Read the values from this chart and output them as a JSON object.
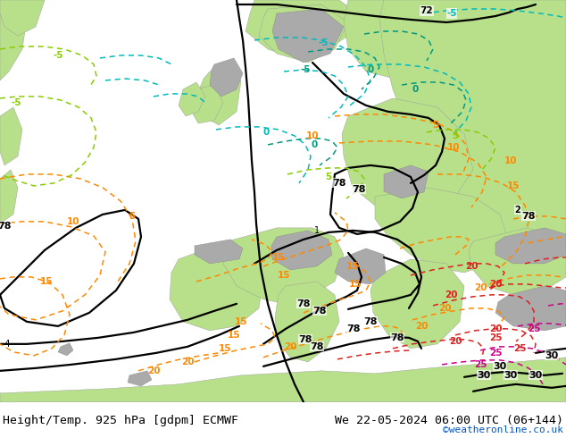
{
  "title_left": "Height/Temp. 925 hPa [gdpm] ECMWF",
  "title_right": "We 22-05-2024 06:00 UTC (06+144)",
  "credit": "©weatheronline.co.uk",
  "title_fontsize": 9.5,
  "credit_color": "#0055cc",
  "bg_color": "#ffffff",
  "sea_color": "#d8d8d8",
  "land_green": "#b8e08a",
  "land_gray": "#aaaaaa",
  "c_black": "#000000",
  "c_orange": "#ff8800",
  "c_cyan": "#00bbbb",
  "c_teal": "#009980",
  "c_lime": "#88cc00",
  "c_red": "#dd2020",
  "c_magenta": "#cc0088"
}
